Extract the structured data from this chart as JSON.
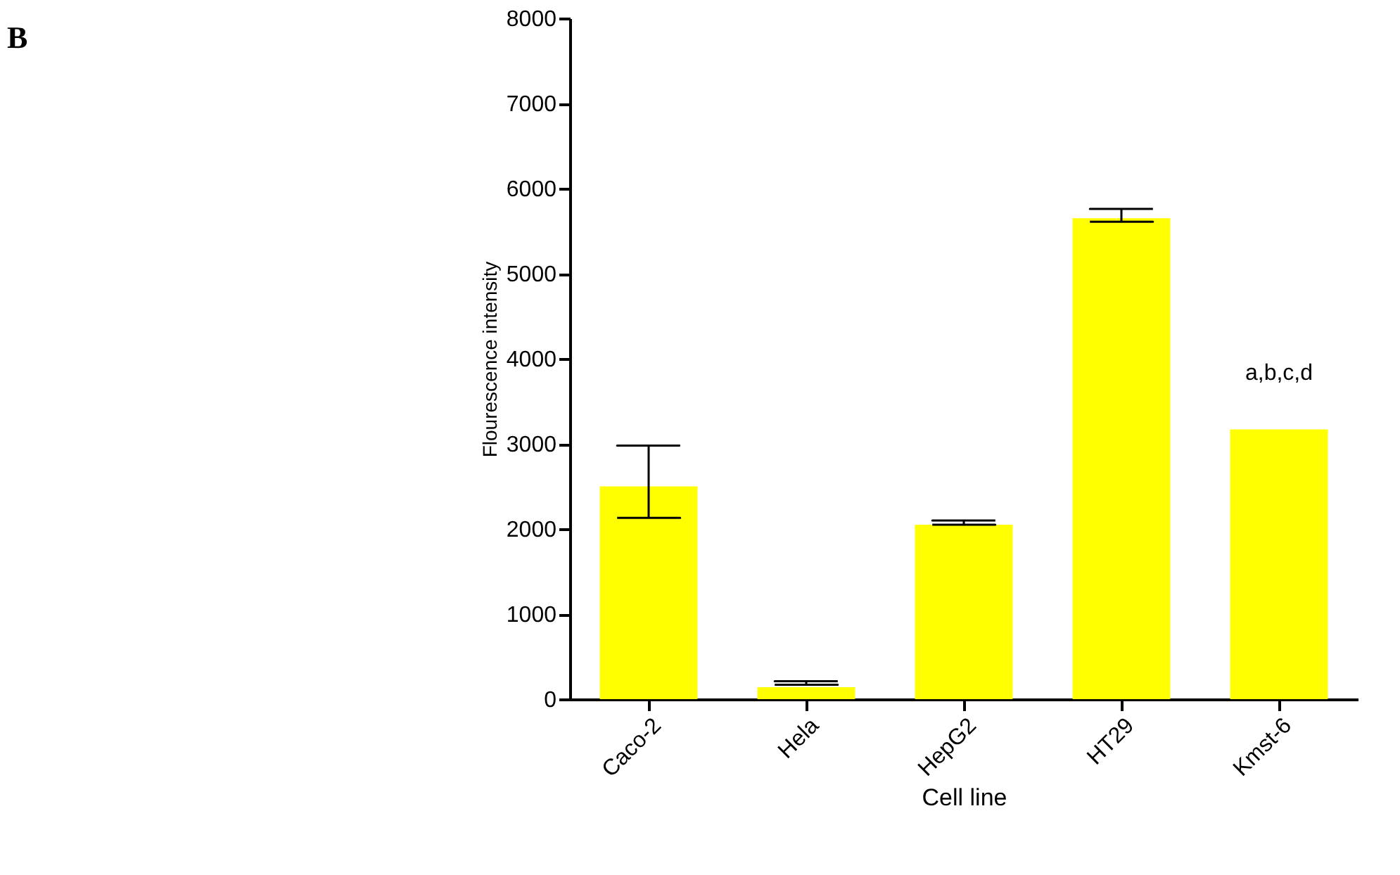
{
  "chart_data": {
    "type": "bar",
    "xlabel": "Cell line",
    "ylabel": "Flourescence intensity",
    "categories": [
      "Caco-2",
      "Hela",
      "HepG2",
      "HT29",
      "Kmst-6"
    ],
    "values": [
      2500,
      140,
      2050,
      5650,
      3170
    ],
    "errors": [
      [
        2130,
        2980
      ],
      [
        170,
        210
      ],
      [
        2050,
        2100
      ],
      [
        5610,
        5760
      ],
      null
    ],
    "color": "#ffff00",
    "ylim": [
      0,
      8000
    ],
    "yticks": [
      0,
      1000,
      2000,
      3000,
      4000,
      5000,
      6000,
      7000,
      8000
    ],
    "grid": false,
    "annotations": [
      "a,b,c,d",
      "B"
    ]
  }
}
